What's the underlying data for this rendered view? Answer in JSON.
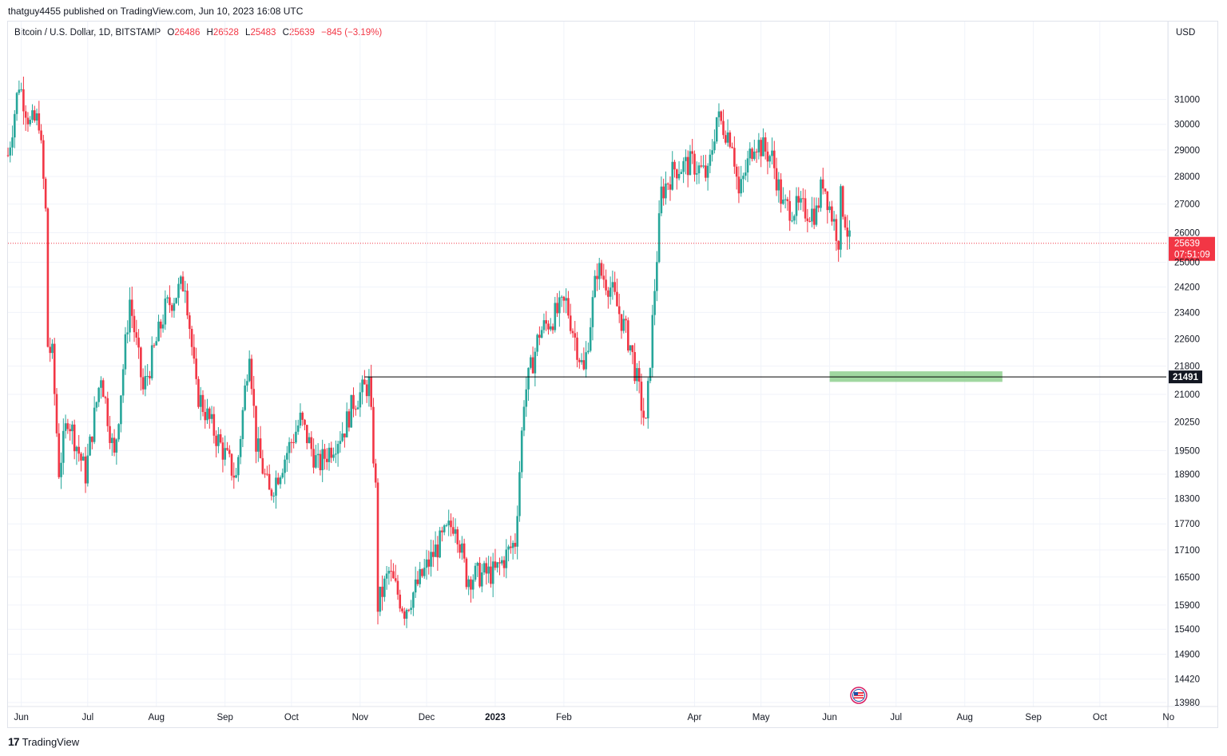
{
  "header": {
    "publish_line": "thatguy4455 published on TradingView.com, Jun 10, 2023 16:08 UTC"
  },
  "legend": {
    "symbol": "Bitcoin / U.S. Dollar, 1D, BITSTAMP",
    "o_label": "O",
    "o_value": "26486",
    "h_label": "H",
    "h_value": "26528",
    "l_label": "L",
    "l_value": "25483",
    "c_label": "C",
    "c_value": "25639",
    "change": "−845 (−3.19%)"
  },
  "currency_label": "USD",
  "footer": {
    "brand_mark": "17",
    "brand_name": "TradingView"
  },
  "colors": {
    "up": "#26a69a",
    "down": "#f23645",
    "grid": "#f0f3fa",
    "zone": "#8fd08f",
    "last_price_badge": "#f23645",
    "level_badge": "#131722"
  },
  "chart_data": {
    "type": "candlestick",
    "symbol": "Bitcoin / U.S. Dollar",
    "interval": "1D",
    "exchange": "BITSTAMP",
    "y_scale": "log",
    "ylim": [
      13980,
      34000
    ],
    "y_ticks": [
      31000,
      30000,
      29000,
      28000,
      27000,
      26000,
      25000,
      24200,
      23400,
      22600,
      21800,
      21000,
      20250,
      19500,
      18900,
      18300,
      17700,
      17100,
      16500,
      15900,
      15400,
      14900,
      14420,
      13980
    ],
    "x_range": [
      "2022-05-26",
      "2023-10-31"
    ],
    "x_ticks": [
      {
        "label": "Jun",
        "date": "2022-06-01"
      },
      {
        "label": "Jul",
        "date": "2022-07-01"
      },
      {
        "label": "Aug",
        "date": "2022-08-01"
      },
      {
        "label": "Sep",
        "date": "2022-09-01"
      },
      {
        "label": "Oct",
        "date": "2022-10-01"
      },
      {
        "label": "Nov",
        "date": "2022-11-01"
      },
      {
        "label": "Dec",
        "date": "2022-12-01"
      },
      {
        "label": "2023",
        "date": "2023-01-01",
        "bold": true
      },
      {
        "label": "Feb",
        "date": "2023-02-01"
      },
      {
        "label": "Apr",
        "date": "2023-04-01"
      },
      {
        "label": "May",
        "date": "2023-05-01"
      },
      {
        "label": "Jun",
        "date": "2023-06-01"
      },
      {
        "label": "Jul",
        "date": "2023-07-01"
      },
      {
        "label": "Aug",
        "date": "2023-08-01"
      },
      {
        "label": "Sep",
        "date": "2023-09-01"
      },
      {
        "label": "Oct",
        "date": "2023-10-01"
      },
      {
        "label": "No",
        "date": "2023-11-01"
      }
    ],
    "price_path": [
      [
        "2022-05-26",
        28800
      ],
      [
        "2022-05-31",
        31700
      ],
      [
        "2022-06-05",
        30000
      ],
      [
        "2022-06-09",
        30200
      ],
      [
        "2022-06-12",
        26700
      ],
      [
        "2022-06-13",
        22400
      ],
      [
        "2022-06-15",
        22100
      ],
      [
        "2022-06-18",
        19000
      ],
      [
        "2022-06-22",
        20400
      ],
      [
        "2022-06-30",
        18900
      ],
      [
        "2022-07-07",
        21600
      ],
      [
        "2022-07-13",
        19300
      ],
      [
        "2022-07-20",
        23800
      ],
      [
        "2022-07-26",
        21100
      ],
      [
        "2022-08-05",
        23500
      ],
      [
        "2022-08-14",
        24400
      ],
      [
        "2022-08-19",
        21100
      ],
      [
        "2022-08-27",
        20000
      ],
      [
        "2022-09-06",
        18800
      ],
      [
        "2022-09-12",
        22400
      ],
      [
        "2022-09-15",
        19700
      ],
      [
        "2022-09-21",
        18400
      ],
      [
        "2022-10-05",
        20300
      ],
      [
        "2022-10-13",
        19100
      ],
      [
        "2022-10-25",
        20100
      ],
      [
        "2022-10-29",
        20800
      ],
      [
        "2022-11-05",
        21300
      ],
      [
        "2022-11-08",
        18500
      ],
      [
        "2022-11-09",
        15900
      ],
      [
        "2022-11-14",
        16600
      ],
      [
        "2022-11-21",
        15800
      ],
      [
        "2022-12-05",
        17100
      ],
      [
        "2022-12-14",
        17800
      ],
      [
        "2022-12-19",
        16500
      ],
      [
        "2023-01-01",
        16600
      ],
      [
        "2023-01-10",
        17300
      ],
      [
        "2023-01-14",
        20900
      ],
      [
        "2023-01-21",
        22800
      ],
      [
        "2023-02-02",
        23700
      ],
      [
        "2023-02-10",
        21600
      ],
      [
        "2023-02-16",
        24800
      ],
      [
        "2023-02-22",
        24200
      ],
      [
        "2023-03-03",
        22400
      ],
      [
        "2023-03-10",
        20100
      ],
      [
        "2023-03-14",
        24200
      ],
      [
        "2023-03-17",
        27400
      ],
      [
        "2023-03-23",
        28300
      ],
      [
        "2023-03-31",
        28500
      ],
      [
        "2023-04-07",
        28000
      ],
      [
        "2023-04-11",
        30300
      ],
      [
        "2023-04-18",
        29400
      ],
      [
        "2023-04-21",
        27300
      ],
      [
        "2023-04-28",
        29400
      ],
      [
        "2023-05-06",
        28700
      ],
      [
        "2023-05-11",
        26900
      ],
      [
        "2023-05-20",
        26800
      ],
      [
        "2023-05-26",
        26700
      ],
      [
        "2023-05-29",
        27900
      ],
      [
        "2023-06-01",
        26900
      ],
      [
        "2023-06-05",
        25800
      ],
      [
        "2023-06-06",
        27200
      ],
      [
        "2023-06-08",
        26500
      ],
      [
        "2023-06-10",
        25639
      ]
    ],
    "last_price": 25639,
    "countdown": "07:51:09",
    "horizontal_level": {
      "price": 21491,
      "label": "21491",
      "start": "2022-11-03"
    },
    "zone": {
      "low": 21350,
      "high": 21650,
      "start": "2023-06-01",
      "end": "2023-08-18"
    }
  }
}
